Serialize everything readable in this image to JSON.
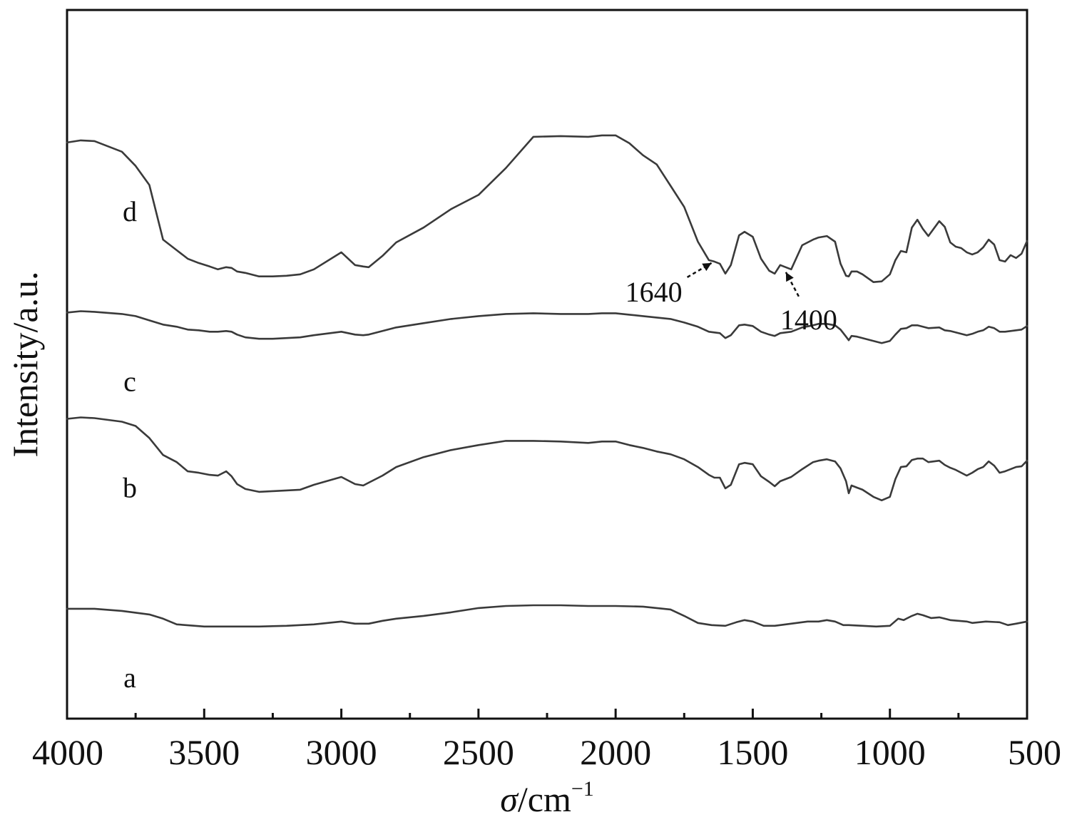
{
  "chart_data": {
    "type": "line",
    "title": "",
    "xlabel": {
      "symbol": "σ",
      "unit": "/cm",
      "exponent": "−1"
    },
    "ylabel": "Intensity/a.u.",
    "xlim": [
      4000,
      500
    ],
    "x_reversed": true,
    "xticks": [
      "4000",
      "3500",
      "3000",
      "2500",
      "2000",
      "1500",
      "1000",
      "500"
    ],
    "xtick_values": [
      4000,
      3500,
      3000,
      2500,
      2000,
      1500,
      1000,
      500
    ],
    "minor_xticks": [
      3750,
      3250,
      2750,
      2250,
      1750,
      1250,
      750
    ],
    "ylim": [
      0,
      100
    ],
    "yticks_shown": false,
    "grid": false,
    "legend": "none",
    "line_color": "#3a3a3a",
    "series": [
      {
        "name": "a",
        "x": [
          4000,
          3900,
          3800,
          3700,
          3650,
          3600,
          3500,
          3400,
          3300,
          3200,
          3100,
          3000,
          2950,
          2900,
          2850,
          2800,
          2700,
          2600,
          2500,
          2400,
          2300,
          2200,
          2100,
          2000,
          1900,
          1800,
          1750,
          1700,
          1650,
          1600,
          1560,
          1530,
          1500,
          1460,
          1420,
          1380,
          1300,
          1260,
          1230,
          1200,
          1170,
          1150,
          1100,
          1050,
          1000,
          970,
          950,
          920,
          900,
          880,
          850,
          820,
          800,
          780,
          750,
          720,
          700,
          650,
          600,
          570,
          540,
          500
        ],
        "y": [
          15.5,
          15.5,
          15.2,
          14.7,
          14.1,
          13.3,
          13.0,
          13.0,
          13.0,
          13.1,
          13.3,
          13.7,
          13.4,
          13.4,
          13.8,
          14.1,
          14.5,
          15.0,
          15.6,
          15.9,
          16.0,
          16.0,
          15.9,
          15.9,
          15.8,
          15.4,
          14.5,
          13.5,
          13.2,
          13.1,
          13.6,
          13.9,
          13.7,
          13.1,
          13.1,
          13.3,
          13.7,
          13.7,
          13.9,
          13.7,
          13.2,
          13.2,
          13.1,
          13.0,
          13.1,
          14.1,
          13.9,
          14.5,
          14.8,
          14.6,
          14.2,
          14.3,
          14.1,
          13.9,
          13.8,
          13.7,
          13.5,
          13.7,
          13.6,
          13.2,
          13.4,
          13.7
        ]
      },
      {
        "name": "b",
        "x": [
          4000,
          3950,
          3900,
          3800,
          3750,
          3700,
          3650,
          3600,
          3560,
          3520,
          3480,
          3450,
          3420,
          3400,
          3380,
          3350,
          3300,
          3250,
          3200,
          3150,
          3100,
          3000,
          2950,
          2920,
          2900,
          2850,
          2800,
          2700,
          2600,
          2500,
          2400,
          2300,
          2200,
          2100,
          2050,
          2000,
          1950,
          1900,
          1850,
          1800,
          1750,
          1700,
          1660,
          1640,
          1620,
          1600,
          1580,
          1550,
          1530,
          1500,
          1470,
          1440,
          1420,
          1400,
          1360,
          1320,
          1280,
          1260,
          1230,
          1200,
          1180,
          1160,
          1150,
          1140,
          1120,
          1100,
          1060,
          1030,
          1000,
          980,
          960,
          940,
          920,
          900,
          880,
          860,
          820,
          800,
          780,
          760,
          740,
          720,
          700,
          680,
          660,
          640,
          620,
          600,
          580,
          560,
          540,
          520,
          500
        ],
        "y": [
          42.3,
          42.5,
          42.4,
          41.9,
          41.3,
          39.6,
          37.2,
          36.2,
          34.9,
          34.7,
          34.4,
          34.3,
          34.9,
          34.2,
          33.1,
          32.4,
          32.0,
          32.1,
          32.2,
          32.3,
          33.0,
          34.1,
          33.1,
          32.9,
          33.3,
          34.3,
          35.5,
          36.9,
          37.9,
          38.6,
          39.2,
          39.2,
          39.1,
          38.9,
          39.1,
          39.1,
          38.6,
          38.2,
          37.7,
          37.3,
          36.6,
          35.5,
          34.4,
          34.0,
          34.0,
          32.5,
          33.0,
          35.9,
          36.1,
          35.9,
          34.2,
          33.4,
          32.8,
          33.5,
          34.1,
          35.2,
          36.2,
          36.4,
          36.6,
          36.3,
          35.3,
          33.5,
          31.8,
          32.9,
          32.6,
          32.3,
          31.3,
          30.8,
          31.3,
          33.8,
          35.5,
          35.6,
          36.5,
          36.7,
          36.7,
          36.2,
          36.4,
          35.8,
          35.4,
          35.1,
          34.7,
          34.3,
          34.7,
          35.2,
          35.5,
          36.3,
          35.7,
          34.7,
          34.9,
          35.2,
          35.5,
          35.6,
          36.4
        ]
      },
      {
        "name": "c",
        "x": [
          4000,
          3950,
          3900,
          3800,
          3750,
          3700,
          3650,
          3600,
          3560,
          3520,
          3480,
          3450,
          3420,
          3400,
          3380,
          3350,
          3300,
          3250,
          3200,
          3150,
          3100,
          3000,
          2950,
          2920,
          2900,
          2850,
          2800,
          2700,
          2600,
          2500,
          2400,
          2300,
          2200,
          2100,
          2050,
          2000,
          1950,
          1900,
          1850,
          1800,
          1750,
          1700,
          1660,
          1640,
          1620,
          1600,
          1580,
          1550,
          1530,
          1500,
          1470,
          1440,
          1420,
          1400,
          1360,
          1320,
          1280,
          1260,
          1230,
          1200,
          1180,
          1160,
          1150,
          1140,
          1120,
          1100,
          1060,
          1030,
          1000,
          980,
          960,
          940,
          920,
          900,
          880,
          860,
          820,
          800,
          780,
          760,
          740,
          720,
          700,
          680,
          660,
          640,
          620,
          600,
          580,
          560,
          540,
          520,
          500
        ],
        "y": [
          57.3,
          57.5,
          57.4,
          57.1,
          56.8,
          56.2,
          55.6,
          55.3,
          54.9,
          54.8,
          54.6,
          54.6,
          54.7,
          54.6,
          54.2,
          53.8,
          53.6,
          53.6,
          53.7,
          53.8,
          54.1,
          54.6,
          54.2,
          54.1,
          54.2,
          54.7,
          55.2,
          55.8,
          56.4,
          56.8,
          57.1,
          57.2,
          57.1,
          57.1,
          57.2,
          57.2,
          57.0,
          56.8,
          56.6,
          56.4,
          55.9,
          55.3,
          54.6,
          54.5,
          54.4,
          53.7,
          54.1,
          55.5,
          55.6,
          55.4,
          54.6,
          54.2,
          54.0,
          54.4,
          54.6,
          55.2,
          55.5,
          55.7,
          55.7,
          55.5,
          54.9,
          53.9,
          53.4,
          54.0,
          53.9,
          53.7,
          53.3,
          53.0,
          53.3,
          54.2,
          55.0,
          55.1,
          55.5,
          55.5,
          55.3,
          55.1,
          55.2,
          54.8,
          54.7,
          54.5,
          54.3,
          54.1,
          54.3,
          54.6,
          54.8,
          55.3,
          55.1,
          54.6,
          54.6,
          54.7,
          54.8,
          54.9,
          55.4
        ]
      },
      {
        "name": "d",
        "x": [
          4000,
          3950,
          3900,
          3800,
          3750,
          3700,
          3650,
          3600,
          3560,
          3520,
          3480,
          3450,
          3420,
          3400,
          3380,
          3350,
          3300,
          3250,
          3200,
          3150,
          3100,
          3000,
          2950,
          2920,
          2900,
          2850,
          2800,
          2700,
          2600,
          2500,
          2400,
          2300,
          2200,
          2100,
          2050,
          2000,
          1950,
          1900,
          1850,
          1800,
          1750,
          1700,
          1660,
          1640,
          1620,
          1600,
          1580,
          1550,
          1530,
          1500,
          1470,
          1440,
          1420,
          1400,
          1360,
          1320,
          1280,
          1260,
          1230,
          1200,
          1180,
          1160,
          1150,
          1140,
          1120,
          1100,
          1060,
          1030,
          1000,
          980,
          960,
          940,
          920,
          900,
          880,
          860,
          820,
          800,
          780,
          760,
          740,
          720,
          700,
          680,
          660,
          640,
          620,
          600,
          580,
          560,
          540,
          520,
          500
        ],
        "y": [
          81.3,
          81.6,
          81.5,
          80.0,
          78.0,
          75.3,
          67.6,
          66.1,
          64.9,
          64.3,
          63.8,
          63.4,
          63.7,
          63.6,
          63.1,
          62.9,
          62.4,
          62.4,
          62.5,
          62.7,
          63.4,
          65.8,
          64.0,
          63.8,
          63.7,
          65.3,
          67.2,
          69.3,
          71.9,
          73.9,
          77.7,
          82.1,
          82.2,
          82.1,
          82.3,
          82.3,
          81.2,
          79.5,
          78.2,
          75.2,
          72.2,
          67.3,
          64.7,
          64.5,
          64.2,
          62.8,
          64.0,
          68.2,
          68.7,
          68.0,
          64.9,
          63.2,
          62.8,
          64.0,
          63.4,
          66.8,
          67.6,
          67.9,
          68.1,
          67.3,
          64.2,
          62.5,
          62.4,
          63.1,
          63.1,
          62.7,
          61.6,
          61.7,
          62.7,
          64.7,
          66.0,
          65.8,
          69.3,
          70.4,
          69.1,
          68.1,
          70.2,
          69.4,
          67.2,
          66.6,
          66.4,
          65.8,
          65.5,
          65.8,
          66.5,
          67.6,
          66.9,
          64.7,
          64.5,
          65.4,
          65.0,
          65.6,
          67.4
        ]
      }
    ],
    "annotations": [
      {
        "text": "1640",
        "x": 1640
      },
      {
        "text": "1400",
        "x": 1400
      }
    ]
  }
}
